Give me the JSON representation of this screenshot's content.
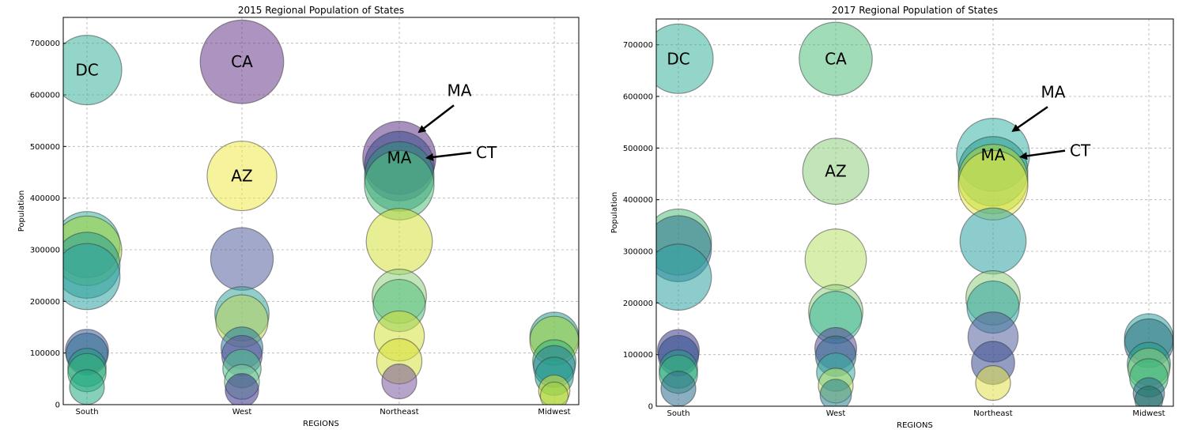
{
  "chart_data": [
    {
      "type": "scatter",
      "title": "2015 Regional Population of States",
      "xlabel": "REGIONS",
      "ylabel": "Population",
      "categories": [
        "South",
        "West",
        "Northeast",
        "Midwest"
      ],
      "ylim": [
        0,
        750000
      ],
      "yticks": [
        0,
        100000,
        200000,
        300000,
        400000,
        500000,
        600000,
        700000
      ],
      "grid": true,
      "points": [
        {
          "cat": "South",
          "y": 648000,
          "size": 1.0,
          "color": "#3ab39a",
          "label": "DC"
        },
        {
          "cat": "South",
          "y": 310000,
          "size": 0.95,
          "color": "#3ab39a"
        },
        {
          "cat": "South",
          "y": 298000,
          "size": 1.0,
          "color": "#9fd43b"
        },
        {
          "cat": "South",
          "y": 270000,
          "size": 0.95,
          "color": "#2a9d8f"
        },
        {
          "cat": "South",
          "y": 248000,
          "size": 0.95,
          "color": "#2ea3a3"
        },
        {
          "cat": "South",
          "y": 104000,
          "size": 0.62,
          "color": "#3b5b9e"
        },
        {
          "cat": "South",
          "y": 98000,
          "size": 0.6,
          "color": "#2e6b8e"
        },
        {
          "cat": "South",
          "y": 72000,
          "size": 0.55,
          "color": "#1f9e89"
        },
        {
          "cat": "South",
          "y": 62000,
          "size": 0.55,
          "color": "#35b779"
        },
        {
          "cat": "South",
          "y": 34000,
          "size": 0.5,
          "color": "#22a884"
        },
        {
          "cat": "West",
          "y": 664000,
          "size": 1.2,
          "color": "#6a3a8a",
          "label": "CA"
        },
        {
          "cat": "West",
          "y": 443000,
          "size": 1.0,
          "color": "#f0ea4a",
          "label": "AZ"
        },
        {
          "cat": "West",
          "y": 282000,
          "size": 0.9,
          "color": "#55609e"
        },
        {
          "cat": "West",
          "y": 176000,
          "size": 0.78,
          "color": "#39a8a0"
        },
        {
          "cat": "West",
          "y": 162000,
          "size": 0.75,
          "color": "#b8d35a"
        },
        {
          "cat": "West",
          "y": 110000,
          "size": 0.6,
          "color": "#2a7fa0"
        },
        {
          "cat": "West",
          "y": 95000,
          "size": 0.58,
          "color": "#5b4a9a"
        },
        {
          "cat": "West",
          "y": 70000,
          "size": 0.55,
          "color": "#4cc38a"
        },
        {
          "cat": "West",
          "y": 44000,
          "size": 0.5,
          "color": "#7fcfa2"
        },
        {
          "cat": "West",
          "y": 28000,
          "size": 0.48,
          "color": "#3a2e8a"
        },
        {
          "cat": "Northeast",
          "y": 478000,
          "size": 1.05,
          "color": "#5c3586",
          "label": "MA"
        },
        {
          "cat": "Northeast",
          "y": 462000,
          "size": 1.0,
          "color": "#3b4d8e"
        },
        {
          "cat": "Northeast",
          "y": 442000,
          "size": 1.0,
          "color": "#2b8a7c"
        },
        {
          "cat": "Northeast",
          "y": 425000,
          "size": 1.0,
          "color": "#52c07e"
        },
        {
          "cat": "Northeast",
          "y": 316000,
          "size": 0.95,
          "color": "#d6e03a"
        },
        {
          "cat": "Northeast",
          "y": 210000,
          "size": 0.78,
          "color": "#8ed07e"
        },
        {
          "cat": "Northeast",
          "y": 192000,
          "size": 0.75,
          "color": "#52c07e"
        },
        {
          "cat": "Northeast",
          "y": 133000,
          "size": 0.72,
          "color": "#d6e03a"
        },
        {
          "cat": "Northeast",
          "y": 84000,
          "size": 0.65,
          "color": "#d6e03a"
        },
        {
          "cat": "Northeast",
          "y": 45000,
          "size": 0.5,
          "color": "#7a5a9e"
        },
        {
          "cat": "Midwest",
          "y": 132000,
          "size": 0.7,
          "color": "#2a9d8f"
        },
        {
          "cat": "Midwest",
          "y": 124000,
          "size": 0.7,
          "color": "#9fd43b"
        },
        {
          "cat": "Midwest",
          "y": 84000,
          "size": 0.62,
          "color": "#35b779"
        },
        {
          "cat": "Midwest",
          "y": 74000,
          "size": 0.6,
          "color": "#2a7fa0"
        },
        {
          "cat": "Midwest",
          "y": 55000,
          "size": 0.55,
          "color": "#1f9e89"
        },
        {
          "cat": "Midwest",
          "y": 27000,
          "size": 0.45,
          "color": "#d6e03a"
        },
        {
          "cat": "Midwest",
          "y": 17000,
          "size": 0.4,
          "color": "#9fd43b"
        }
      ],
      "annotations": [
        {
          "text": "MA",
          "target_cat": "Northeast",
          "target_y": 528000,
          "text_y": 595000
        },
        {
          "text": "CT",
          "target_cat": "Northeast",
          "target_y": 478000,
          "text_y": 488000
        }
      ]
    },
    {
      "type": "scatter",
      "title": "2017 Regional Population of States",
      "xlabel": "REGIONS",
      "ylabel": "Population",
      "categories": [
        "South",
        "West",
        "Northeast",
        "Midwest"
      ],
      "ylim": [
        0,
        750000
      ],
      "yticks": [
        0,
        100000,
        200000,
        300000,
        400000,
        500000,
        600000,
        700000
      ],
      "grid": true,
      "points": [
        {
          "cat": "South",
          "y": 673000,
          "size": 1.0,
          "color": "#3ab39a",
          "label": "DC"
        },
        {
          "cat": "South",
          "y": 318000,
          "size": 0.95,
          "color": "#52c07e"
        },
        {
          "cat": "South",
          "y": 305000,
          "size": 0.95,
          "color": "#2a6f8e"
        },
        {
          "cat": "South",
          "y": 250000,
          "size": 0.95,
          "color": "#2ea3a3"
        },
        {
          "cat": "South",
          "y": 108000,
          "size": 0.6,
          "color": "#3a3a8a"
        },
        {
          "cat": "South",
          "y": 98000,
          "size": 0.58,
          "color": "#2e4a8e"
        },
        {
          "cat": "South",
          "y": 72000,
          "size": 0.55,
          "color": "#2a9d8f"
        },
        {
          "cat": "South",
          "y": 62000,
          "size": 0.55,
          "color": "#35b779"
        },
        {
          "cat": "South",
          "y": 34000,
          "size": 0.5,
          "color": "#2e6b8e"
        },
        {
          "cat": "West",
          "y": 673000,
          "size": 1.05,
          "color": "#52c07e",
          "label": "CA"
        },
        {
          "cat": "West",
          "y": 455000,
          "size": 0.95,
          "color": "#8ed07e",
          "label": "AZ"
        },
        {
          "cat": "West",
          "y": 284000,
          "size": 0.88,
          "color": "#b8e06a"
        },
        {
          "cat": "West",
          "y": 183000,
          "size": 0.78,
          "color": "#8ed07e"
        },
        {
          "cat": "West",
          "y": 172000,
          "size": 0.75,
          "color": "#39b89a"
        },
        {
          "cat": "West",
          "y": 112000,
          "size": 0.6,
          "color": "#5b4a9a"
        },
        {
          "cat": "West",
          "y": 97000,
          "size": 0.58,
          "color": "#2e6b8e"
        },
        {
          "cat": "West",
          "y": 66000,
          "size": 0.55,
          "color": "#39b0a0"
        },
        {
          "cat": "West",
          "y": 40000,
          "size": 0.5,
          "color": "#b8e06a"
        },
        {
          "cat": "West",
          "y": 22000,
          "size": 0.45,
          "color": "#2a7f8e"
        },
        {
          "cat": "Northeast",
          "y": 487000,
          "size": 1.05,
          "color": "#3ab3a8",
          "label": "MA"
        },
        {
          "cat": "Northeast",
          "y": 455000,
          "size": 1.0,
          "color": "#2a9d8f"
        },
        {
          "cat": "Northeast",
          "y": 440000,
          "size": 1.0,
          "color": "#9fd43b"
        },
        {
          "cat": "Northeast",
          "y": 428000,
          "size": 1.0,
          "color": "#e8e84a"
        },
        {
          "cat": "Northeast",
          "y": 320000,
          "size": 0.95,
          "color": "#2ea3a3"
        },
        {
          "cat": "Northeast",
          "y": 210000,
          "size": 0.78,
          "color": "#8ed07e"
        },
        {
          "cat": "Northeast",
          "y": 192000,
          "size": 0.75,
          "color": "#2ea3a3"
        },
        {
          "cat": "Northeast",
          "y": 134000,
          "size": 0.72,
          "color": "#55609e"
        },
        {
          "cat": "Northeast",
          "y": 84000,
          "size": 0.62,
          "color": "#3b4d8e"
        },
        {
          "cat": "Northeast",
          "y": 45000,
          "size": 0.5,
          "color": "#e0e04a"
        },
        {
          "cat": "Midwest",
          "y": 132000,
          "size": 0.7,
          "color": "#2ea3a3"
        },
        {
          "cat": "Midwest",
          "y": 122000,
          "size": 0.7,
          "color": "#2a6f7e"
        },
        {
          "cat": "Midwest",
          "y": 82000,
          "size": 0.62,
          "color": "#1f9e89"
        },
        {
          "cat": "Midwest",
          "y": 72000,
          "size": 0.6,
          "color": "#8ed07e"
        },
        {
          "cat": "Midwest",
          "y": 55000,
          "size": 0.55,
          "color": "#35b779"
        },
        {
          "cat": "Midwest",
          "y": 25000,
          "size": 0.45,
          "color": "#2e6b8e"
        },
        {
          "cat": "Midwest",
          "y": 12000,
          "size": 0.4,
          "color": "#1f6e5e"
        }
      ],
      "annotations": [
        {
          "text": "MA",
          "target_cat": "Northeast",
          "target_y": 533000,
          "text_y": 595000
        },
        {
          "text": "CT",
          "target_cat": "Northeast",
          "target_y": 483000,
          "text_y": 495000
        }
      ]
    }
  ]
}
